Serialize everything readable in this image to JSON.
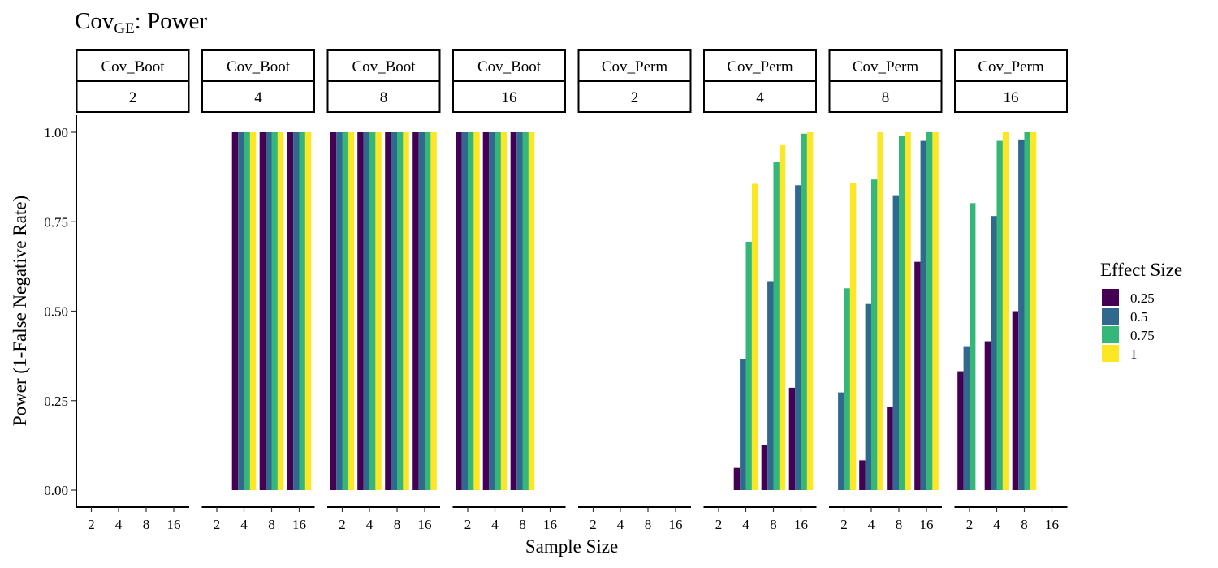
{
  "title": {
    "main": "Cov",
    "subscript": "GE",
    "suffix": ": Power"
  },
  "chart_data": {
    "type": "bar",
    "title": "CovGE: Power",
    "xlabel": "Sample Size",
    "ylabel": "Power (1-False Negative Rate)",
    "ylim": [
      0,
      1
    ],
    "y_ticks": [
      "0.00",
      "0.25",
      "0.50",
      "0.75",
      "1.00"
    ],
    "y_tick_values": [
      0,
      0.25,
      0.5,
      0.75,
      1
    ],
    "categories": [
      "2",
      "4",
      "8",
      "16"
    ],
    "grid": false,
    "legend": {
      "title": "Effect Size",
      "position": "right",
      "entries": [
        "0.25",
        "0.5",
        "0.75",
        "1"
      ],
      "colors": [
        "#440154",
        "#31688E",
        "#35B779",
        "#FDE725"
      ]
    },
    "panels": [
      {
        "method": "Cov_Boot",
        "facet": "2",
        "values": [
          [
            0,
            0,
            0,
            0
          ],
          [
            0,
            0,
            0,
            0
          ],
          [
            0,
            0,
            0,
            0
          ],
          [
            0,
            0,
            0,
            0
          ]
        ]
      },
      {
        "method": "Cov_Boot",
        "facet": "4",
        "values": [
          [
            0,
            0,
            0,
            0
          ],
          [
            1,
            1,
            1,
            1
          ],
          [
            1,
            1,
            1,
            1
          ],
          [
            1,
            1,
            1,
            1
          ]
        ]
      },
      {
        "method": "Cov_Boot",
        "facet": "8",
        "values": [
          [
            1,
            1,
            1,
            1
          ],
          [
            1,
            1,
            1,
            1
          ],
          [
            1,
            1,
            1,
            1
          ],
          [
            1,
            1,
            1,
            1
          ]
        ]
      },
      {
        "method": "Cov_Boot",
        "facet": "16",
        "values": [
          [
            1,
            1,
            1,
            1
          ],
          [
            1,
            1,
            1,
            1
          ],
          [
            1,
            1,
            1,
            1
          ],
          [
            0,
            0,
            0,
            0
          ]
        ]
      },
      {
        "method": "Cov_Perm",
        "facet": "2",
        "values": [
          [
            0,
            0,
            0,
            0
          ],
          [
            0,
            0,
            0,
            0
          ],
          [
            0,
            0,
            0,
            0
          ],
          [
            0,
            0,
            0,
            0
          ]
        ]
      },
      {
        "method": "Cov_Perm",
        "facet": "4",
        "values": [
          [
            0,
            0,
            0,
            0
          ],
          [
            0.062,
            0.366,
            0.694,
            0.856
          ],
          [
            0.127,
            0.584,
            0.916,
            0.964
          ],
          [
            0.286,
            0.852,
            0.996,
            1.0
          ]
        ]
      },
      {
        "method": "Cov_Perm",
        "facet": "8",
        "values": [
          [
            0,
            0.273,
            0.564,
            0.858
          ],
          [
            0.083,
            0.52,
            0.868,
            1.0
          ],
          [
            0.233,
            0.824,
            0.99,
            1.0
          ],
          [
            0.638,
            0.976,
            1.0,
            1.0
          ]
        ]
      },
      {
        "method": "Cov_Perm",
        "facet": "16",
        "values": [
          [
            0.332,
            0.4,
            0.802,
            0
          ],
          [
            0.416,
            0.766,
            0.976,
            1.0
          ],
          [
            0.5,
            0.98,
            1.0,
            1.0
          ],
          [
            0,
            0,
            0,
            0
          ]
        ]
      }
    ]
  }
}
